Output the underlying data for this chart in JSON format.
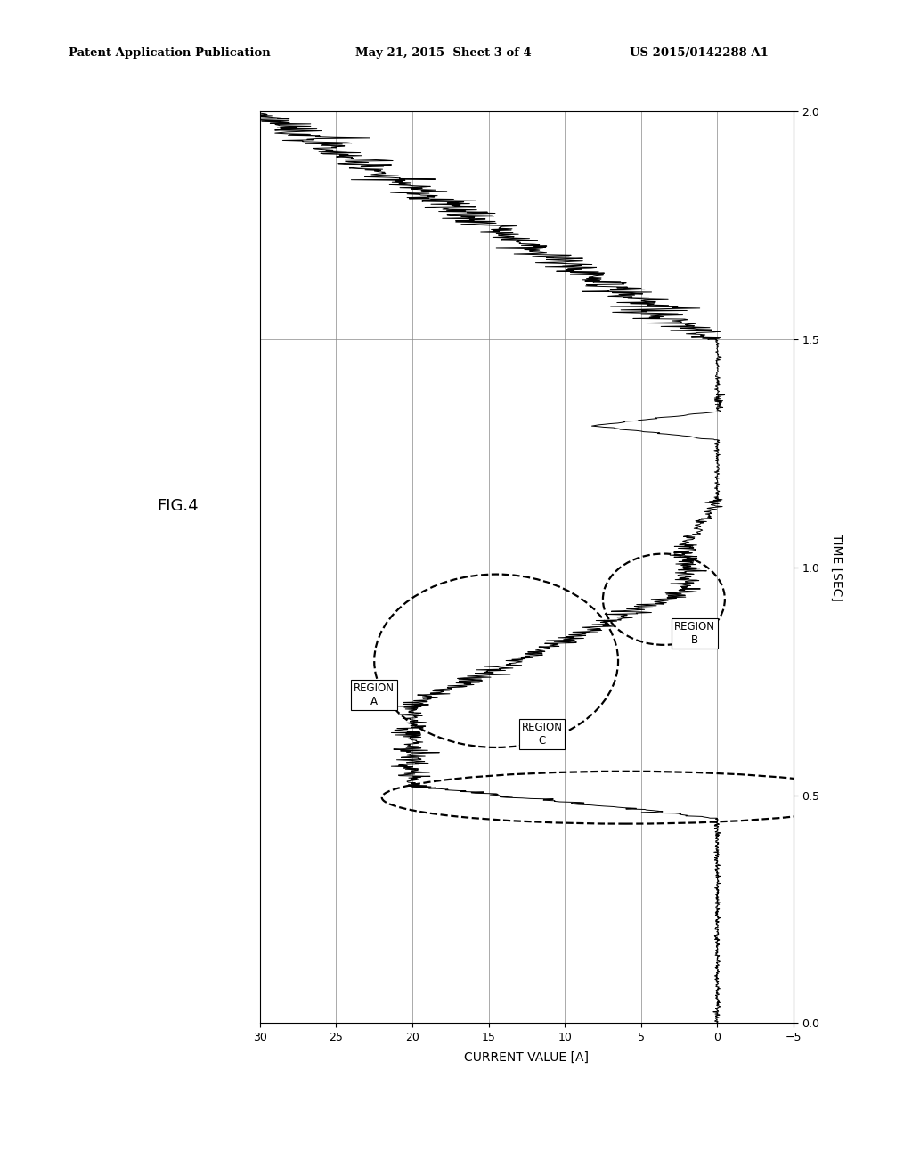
{
  "header_left": "Patent Application Publication",
  "header_mid": "May 21, 2015  Sheet 3 of 4",
  "header_right": "US 2015/0142288 A1",
  "fig_label": "FIG.4",
  "xlabel_bottom": "CURRENT VALUE [A]",
  "ylabel_right": "TIME [SEC]",
  "background_color": "#ffffff",
  "region_A_label": "REGION\nA",
  "region_B_label": "REGION\nB",
  "region_C_label": "REGION\nC",
  "xlim_left": 30,
  "xlim_right": -5,
  "ylim_bottom": 0,
  "ylim_top": 2.0,
  "xticks": [
    30,
    25,
    20,
    15,
    10,
    5,
    0,
    -5
  ],
  "yticks": [
    0,
    0.5,
    1.0,
    1.5,
    2.0
  ],
  "grid_color": "#888888",
  "line_color": "#000000",
  "dashed_color": "#000000"
}
